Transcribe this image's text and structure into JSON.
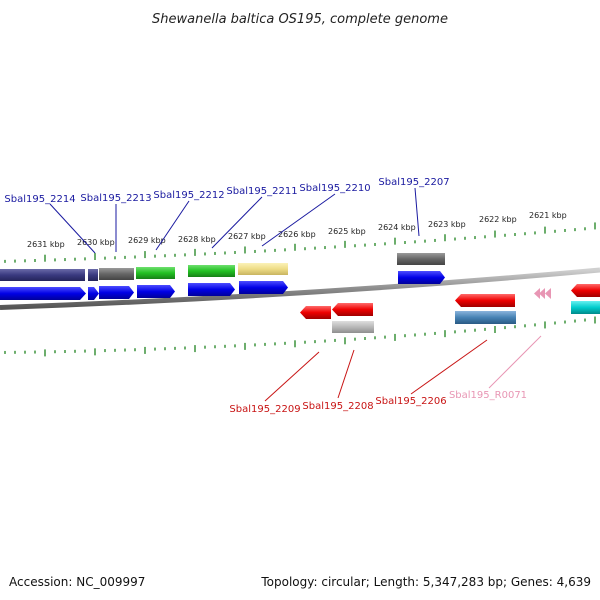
{
  "title": "Shewanella baltica OS195, complete genome",
  "footer": {
    "accession": "Accession: NC_009997",
    "summary": "Topology: circular; Length: 5,347,283 bp; Genes: 4,639"
  },
  "scale_labels": [
    "2631 kbp",
    "2630 kbp",
    "2629 kbp",
    "2628 kbp",
    "2627 kbp",
    "2626 kbp",
    "2625 kbp",
    "2624 kbp",
    "2623 kbp",
    "2622 kbp",
    "2621 kbp"
  ],
  "gene_labels": {
    "top": [
      "Sbal195_2214",
      "Sbal195_2213",
      "Sbal195_2212",
      "Sbal195_2211",
      "Sbal195_2210",
      "Sbal195_2207"
    ],
    "bottom": [
      "Sbal195_2209",
      "Sbal195_2208",
      "Sbal195_2206",
      "Sbal195_R0071"
    ]
  },
  "colors": {
    "label_blue": "#1a1aa0",
    "label_red": "#c81414",
    "label_pink": "#e896b4",
    "tick_green": "#2e8b2e",
    "backbone": "#8c8c8c"
  }
}
